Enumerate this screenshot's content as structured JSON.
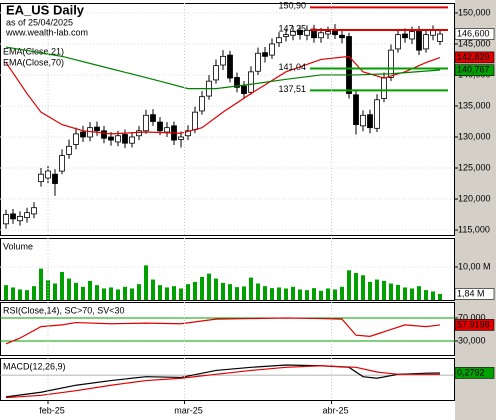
{
  "header": {
    "title": "EA_US Daily",
    "date": "as of 25/04/2025",
    "site": "www.wealth-lab.com"
  },
  "chart_data": [
    {
      "type": "candlestick",
      "open": [
        116.0,
        117.6,
        116.5,
        117.0,
        117.6,
        122.8,
        123.4,
        124.0,
        124.5,
        127.2,
        128.8,
        130.8,
        130.0,
        131.6,
        131.0,
        130.0,
        129.2,
        130.4,
        129.0,
        130.2,
        131.0,
        133.6,
        132.4,
        130.8,
        131.8,
        129.6,
        130.2,
        131.2,
        134.2,
        136.6,
        139.2,
        141.6,
        143.2,
        139.6,
        138.2,
        137.2,
        140.6,
        143.6,
        143.2,
        145.2,
        146.2,
        146.4,
        147.2,
        146.4,
        147.4,
        146.0,
        146.6,
        147.2,
        146.4,
        146.2,
        136.8,
        131.8,
        133.6,
        131.4,
        136.2,
        139.6,
        144.2,
        146.6,
        145.8,
        147.2,
        144.2,
        146.4,
        145.4
      ],
      "high": [
        118.3,
        118.4,
        118.0,
        118.6,
        119.5,
        125.0,
        125.4,
        124.8,
        128.0,
        129.6,
        131.5,
        131.8,
        132.4,
        132.5,
        131.8,
        130.8,
        131.0,
        131.2,
        130.8,
        131.8,
        134.4,
        134.5,
        133.2,
        132.4,
        132.5,
        130.9,
        131.9,
        134.9,
        137.4,
        140.0,
        142.5,
        144.0,
        143.9,
        140.4,
        139.0,
        141.4,
        144.4,
        144.5,
        145.9,
        146.9,
        147.4,
        147.9,
        148.0,
        148.0,
        148.1,
        147.6,
        147.8,
        148.2,
        147.2,
        146.8,
        137.6,
        134.3,
        134.4,
        136.9,
        140.4,
        144.9,
        147.4,
        147.5,
        147.8,
        147.9,
        147.3,
        148.0,
        147.4
      ],
      "low": [
        115.2,
        116.0,
        115.7,
        116.2,
        116.9,
        122.0,
        122.6,
        120.5,
        124.0,
        126.5,
        128.0,
        129.2,
        129.3,
        130.2,
        129.0,
        128.6,
        128.5,
        128.2,
        128.3,
        129.5,
        130.5,
        131.8,
        130.3,
        130.0,
        128.7,
        128.3,
        129.5,
        130.6,
        133.6,
        136.0,
        138.6,
        140.8,
        138.8,
        137.2,
        136.2,
        136.8,
        140.0,
        142.0,
        142.6,
        144.5,
        145.4,
        145.6,
        145.7,
        145.6,
        145.2,
        145.2,
        145.8,
        145.8,
        145.1,
        136.2,
        130.4,
        130.9,
        130.6,
        130.8,
        135.6,
        139.0,
        143.6,
        145.2,
        145.0,
        143.2,
        143.6,
        145.6,
        144.8
      ],
      "close": [
        117.5,
        116.8,
        117.2,
        117.8,
        118.6,
        124.0,
        124.5,
        122.5,
        127.0,
        128.5,
        130.5,
        130.0,
        131.5,
        131.0,
        129.8,
        129.5,
        130.2,
        129.0,
        130.0,
        131.0,
        133.5,
        132.5,
        131.0,
        131.5,
        129.5,
        130.0,
        131.0,
        134.0,
        136.5,
        139.0,
        141.5,
        143.0,
        139.5,
        138.0,
        137.0,
        140.5,
        143.5,
        143.0,
        145.0,
        146.0,
        146.5,
        147.0,
        146.5,
        147.2,
        146.0,
        146.8,
        147.0,
        146.5,
        146.0,
        137.0,
        132.0,
        133.5,
        131.5,
        136.0,
        139.5,
        144.0,
        146.5,
        146.0,
        147.0,
        144.0,
        146.5,
        147.2,
        146.6
      ],
      "ylim": [
        114.2,
        151.6
      ],
      "yticks": [
        {
          "value": 150,
          "label": "150,000"
        },
        {
          "value": 145,
          "label": "145,000"
        },
        {
          "value": 140,
          "label": "140,000"
        },
        {
          "value": 135,
          "label": "135,000"
        },
        {
          "value": 130,
          "label": "130,000"
        },
        {
          "value": 125,
          "label": "125,000"
        },
        {
          "value": 120,
          "label": "120,000"
        },
        {
          "value": 115,
          "label": "115,000"
        }
      ],
      "lines": [
        {
          "name": "EMA(Close,21)",
          "color": "#e00000",
          "x": [
            0,
            3,
            5,
            8,
            11,
            15,
            20,
            25,
            28,
            31,
            35,
            40,
            45,
            49,
            51,
            54,
            57,
            60,
            62
          ],
          "values": [
            142.0,
            137.0,
            134.0,
            132.0,
            131.0,
            130.5,
            130.8,
            130.6,
            131.5,
            134.0,
            137.0,
            140.5,
            142.5,
            143.0,
            140.5,
            139.5,
            140.5,
            142.0,
            142.8
          ]
        },
        {
          "name": "EMA(Close,70)",
          "color": "#008000",
          "x": [
            0,
            8,
            15,
            22,
            26,
            30,
            35,
            40,
            45,
            50,
            55,
            62
          ],
          "values": [
            144.5,
            143.0,
            141.0,
            139.0,
            137.8,
            137.8,
            138.5,
            139.3,
            140.0,
            140.0,
            140.2,
            140.8
          ]
        }
      ],
      "levels": [
        {
          "value": 150.9,
          "label": "150,90",
          "color": "#e00000"
        },
        {
          "value": 147.25,
          "label": "147,25",
          "color": "#e00000"
        },
        {
          "value": 141.04,
          "label": "141,04",
          "color": "#00a000"
        },
        {
          "value": 137.51,
          "label": "137,51",
          "color": "#00a000"
        }
      ],
      "last_values": [
        {
          "value": 146.6,
          "label": "146,600",
          "color": "#ffffff"
        },
        {
          "value": 142.829,
          "label": "142,829",
          "color": "#e00000"
        },
        {
          "value": 140.767,
          "label": "140,767",
          "color": "#00a000"
        }
      ]
    },
    {
      "type": "bar",
      "title": "Volume",
      "color": "#00a000",
      "values": [
        4.5,
        3.8,
        3.2,
        3.0,
        4.2,
        9.5,
        6.0,
        5.0,
        8.5,
        6.5,
        5.2,
        4.0,
        5.8,
        4.5,
        3.5,
        3.8,
        3.2,
        4.0,
        3.5,
        4.8,
        10.5,
        6.2,
        4.5,
        3.8,
        4.2,
        3.5,
        4.8,
        5.5,
        7.0,
        8.0,
        6.5,
        5.2,
        4.8,
        3.9,
        4.1,
        6.8,
        5.0,
        4.2,
        3.6,
        3.8,
        3.5,
        4.0,
        3.2,
        3.0,
        3.6,
        2.8,
        3.5,
        3.2,
        4.0,
        9.0,
        8.2,
        7.5,
        5.5,
        6.2,
        5.8,
        5.0,
        4.6,
        3.8,
        3.5,
        4.2,
        3.0,
        2.6,
        1.84
      ],
      "ylim": [
        0,
        18.8
      ],
      "yticks": [
        {
          "value": 10,
          "label": "10,00 M"
        }
      ],
      "last_values": [
        {
          "value": 1.84,
          "label": "1,84 M",
          "color": "#ffffff"
        }
      ]
    },
    {
      "type": "line",
      "title": "RSI(Close,14), SC>70, SV<30",
      "series": [
        {
          "color": "#e00000",
          "x": [
            0,
            2,
            5,
            8,
            10,
            15,
            20,
            25,
            30,
            35,
            40,
            45,
            48,
            50,
            52,
            55,
            57,
            60,
            62
          ],
          "values": [
            25,
            35,
            55,
            58,
            62,
            60,
            61,
            60,
            68,
            69,
            70,
            69,
            68,
            40,
            38,
            50,
            58,
            55,
            57.9198
          ]
        }
      ],
      "ylim": [
        5.6,
        97.8
      ],
      "yticks": [
        {
          "value": 70,
          "label": "70,000"
        },
        {
          "value": 30,
          "label": "30,000"
        }
      ],
      "last_values": [
        {
          "value": 57.9198,
          "label": "57,9198",
          "color": "#e00000"
        }
      ]
    },
    {
      "type": "line",
      "title": "MACD(12,26,9)",
      "series": [
        {
          "color": "#000000",
          "x": [
            0,
            5,
            10,
            15,
            20,
            25,
            30,
            35,
            40,
            45,
            49,
            51,
            53,
            56,
            60,
            62
          ],
          "values": [
            -2.8,
            -2.2,
            -1.3,
            -0.7,
            -0.2,
            -0.3,
            0.6,
            1.0,
            1.3,
            1.2,
            1.0,
            -0.2,
            -0.4,
            0.1,
            0.25,
            0.2792
          ]
        },
        {
          "color": "#e00000",
          "x": [
            0,
            5,
            10,
            15,
            20,
            25,
            30,
            35,
            40,
            45,
            50,
            53,
            56,
            62
          ],
          "values": [
            -2.9,
            -2.6,
            -2.0,
            -1.3,
            -0.7,
            -0.4,
            0.1,
            0.6,
            1.0,
            1.2,
            1.0,
            0.4,
            0.1,
            0.1
          ]
        }
      ],
      "ylim": [
        -3.2,
        2.2
      ],
      "last_values": [
        {
          "value": 0.2792,
          "label": "0,2792",
          "color": "#00a000"
        }
      ],
      "xticks": [
        {
          "value": 6,
          "label": "feb-25"
        },
        {
          "value": 25.5,
          "label": "mar-25"
        },
        {
          "value": 46.5,
          "label": "abr-25"
        }
      ]
    }
  ]
}
